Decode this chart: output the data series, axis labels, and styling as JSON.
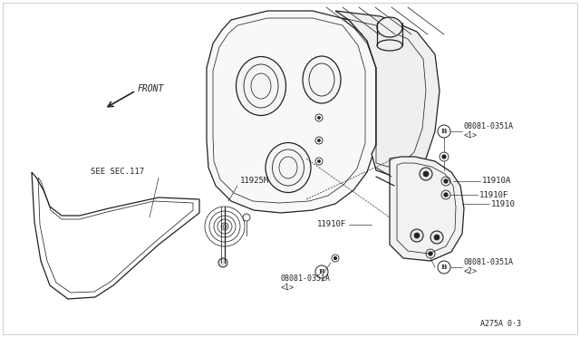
{
  "background_color": "#ffffff",
  "line_color": "#222222",
  "figsize": [
    6.4,
    3.72
  ],
  "dpi": 100,
  "labels": {
    "SEE_SEC117": "SEE SEC.117",
    "11925M": "11925M",
    "11910F_left": "11910F",
    "11910": "11910",
    "11910A": "11910A",
    "11910F_right": "11910F",
    "B_top_label": "08081-0351A",
    "B_top_sub": "<1>",
    "B_btmR_label": "08081-0351A",
    "B_btmR_sub": "<2>",
    "B_btmL_label": "08081-0351A",
    "B_btmL_sub": "<1>",
    "FRONT": "FRONT",
    "diagram_num": "A275A 0·3"
  }
}
